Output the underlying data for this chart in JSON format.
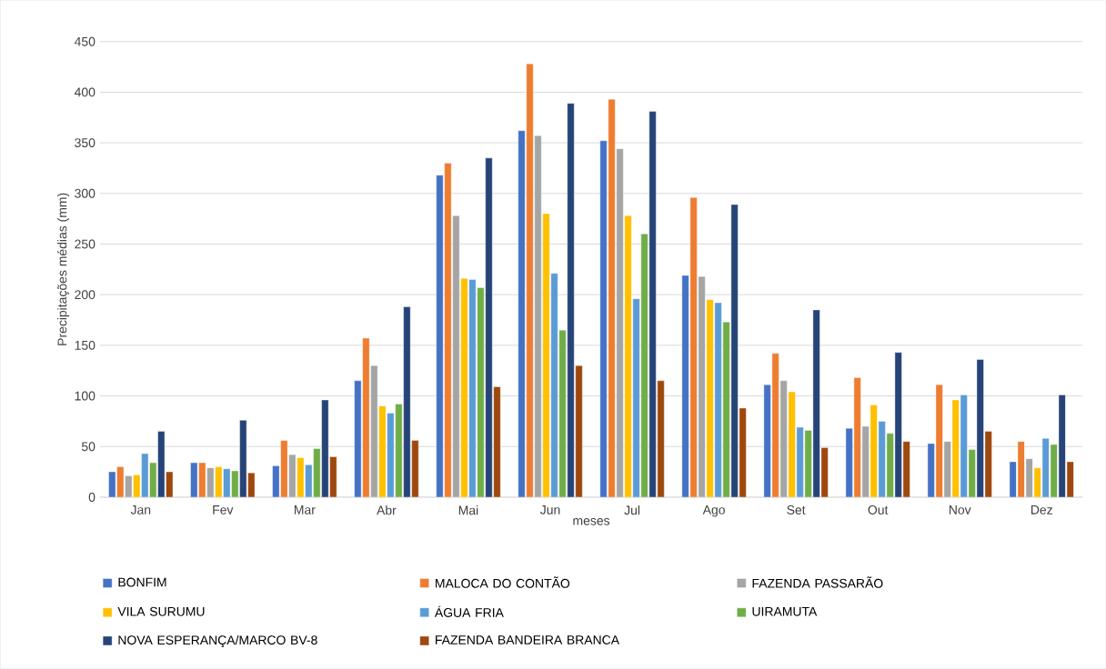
{
  "chart_data": {
    "type": "bar",
    "xlabel": "meses",
    "ylabel": "Precipitações médias (mm)",
    "categories": [
      "Jan",
      "Fev",
      "Mar",
      "Abr",
      "Mai",
      "Jun",
      "Jul",
      "Ago",
      "Set",
      "Out",
      "Nov",
      "Dez"
    ],
    "series": [
      {
        "name": "BONFIM",
        "color": "#4472c4",
        "values": [
          25,
          34,
          31,
          115,
          318,
          362,
          352,
          219,
          111,
          68,
          53,
          35
        ]
      },
      {
        "name": "MALOCA DO CONTÃO",
        "color": "#ed7d31",
        "values": [
          30,
          34,
          56,
          157,
          330,
          428,
          393,
          296,
          142,
          118,
          111,
          55
        ]
      },
      {
        "name": "FAZENDA PASSARÃO",
        "color": "#a5a5a5",
        "values": [
          21,
          29,
          42,
          130,
          278,
          357,
          344,
          218,
          115,
          70,
          55,
          38
        ]
      },
      {
        "name": "VILA SURUMU",
        "color": "#ffc000",
        "values": [
          22,
          30,
          39,
          90,
          216,
          280,
          278,
          195,
          104,
          91,
          96,
          29
        ]
      },
      {
        "name": "ÁGUA FRIA",
        "color": "#5b9bd5",
        "values": [
          43,
          28,
          32,
          83,
          215,
          221,
          196,
          192,
          69,
          75,
          101,
          58
        ]
      },
      {
        "name": "UIRAMUTA",
        "color": "#70ad47",
        "values": [
          34,
          26,
          48,
          92,
          207,
          165,
          260,
          173,
          66,
          63,
          47,
          52
        ]
      },
      {
        "name": "NOVA ESPERANÇA/MARCO BV-8",
        "color": "#264478",
        "values": [
          65,
          76,
          96,
          188,
          335,
          389,
          381,
          289,
          185,
          143,
          136,
          101
        ]
      },
      {
        "name": "FAZENDA BANDEIRA BRANCA",
        "color": "#9e480e",
        "values": [
          25,
          24,
          40,
          56,
          109,
          130,
          115,
          88,
          49,
          55,
          65,
          35
        ]
      }
    ],
    "ylim": [
      0,
      450
    ],
    "yticks": [
      0,
      50,
      100,
      150,
      200,
      250,
      300,
      350,
      400,
      450
    ],
    "grid": "y",
    "legend": "bottom"
  }
}
